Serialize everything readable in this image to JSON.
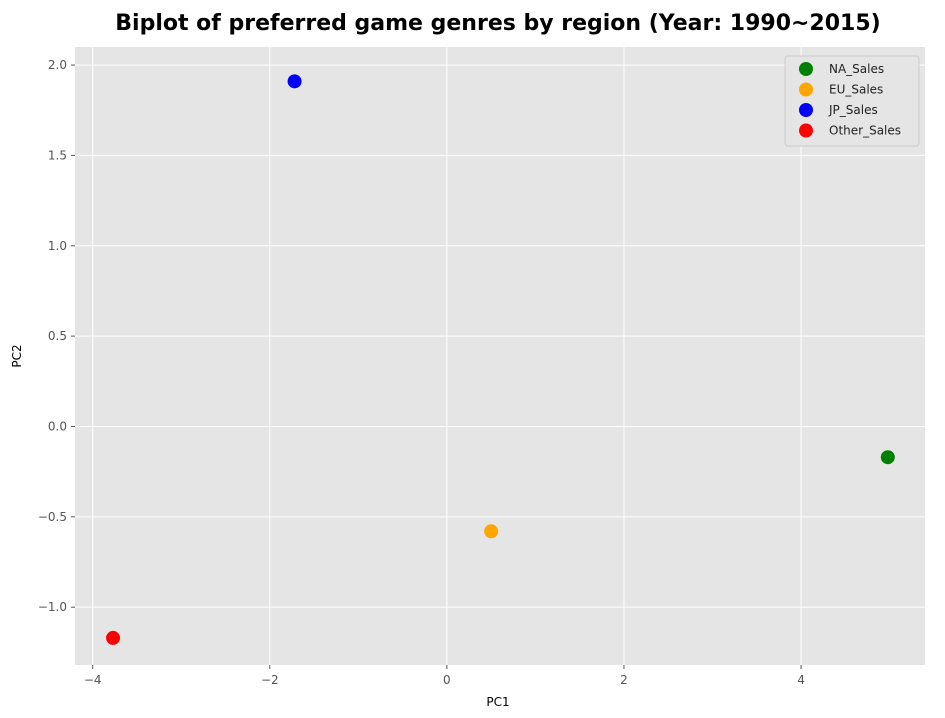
{
  "chart_data": {
    "type": "scatter",
    "title": "Biplot of preferred game genres by region (Year: 1990~2015)",
    "xlabel": "PC1",
    "ylabel": "PC2",
    "xlim": [
      -4.2,
      5.4
    ],
    "ylim": [
      -1.32,
      2.1
    ],
    "xticks": [
      -4,
      -2,
      0,
      2,
      4
    ],
    "xtick_labels": [
      "−4",
      "−2",
      "0",
      "2",
      "4"
    ],
    "yticks": [
      -1.0,
      -0.5,
      0.0,
      0.5,
      1.0,
      1.5,
      2.0
    ],
    "ytick_labels": [
      "−1.0",
      "−0.5",
      "0.0",
      "0.5",
      "1.0",
      "1.5",
      "2.0"
    ],
    "grid": true,
    "legend_position": "top-right",
    "series": [
      {
        "name": "NA_Sales",
        "color": "#008000",
        "x": [
          4.98
        ],
        "y": [
          -0.17
        ]
      },
      {
        "name": "EU_Sales",
        "color": "#ffa500",
        "x": [
          0.5
        ],
        "y": [
          -0.58
        ]
      },
      {
        "name": "JP_Sales",
        "color": "#0000ff",
        "x": [
          -1.72
        ],
        "y": [
          1.91
        ]
      },
      {
        "name": "Other_Sales",
        "color": "#ff0000",
        "x": [
          -3.77
        ],
        "y": [
          -1.17
        ]
      }
    ]
  }
}
